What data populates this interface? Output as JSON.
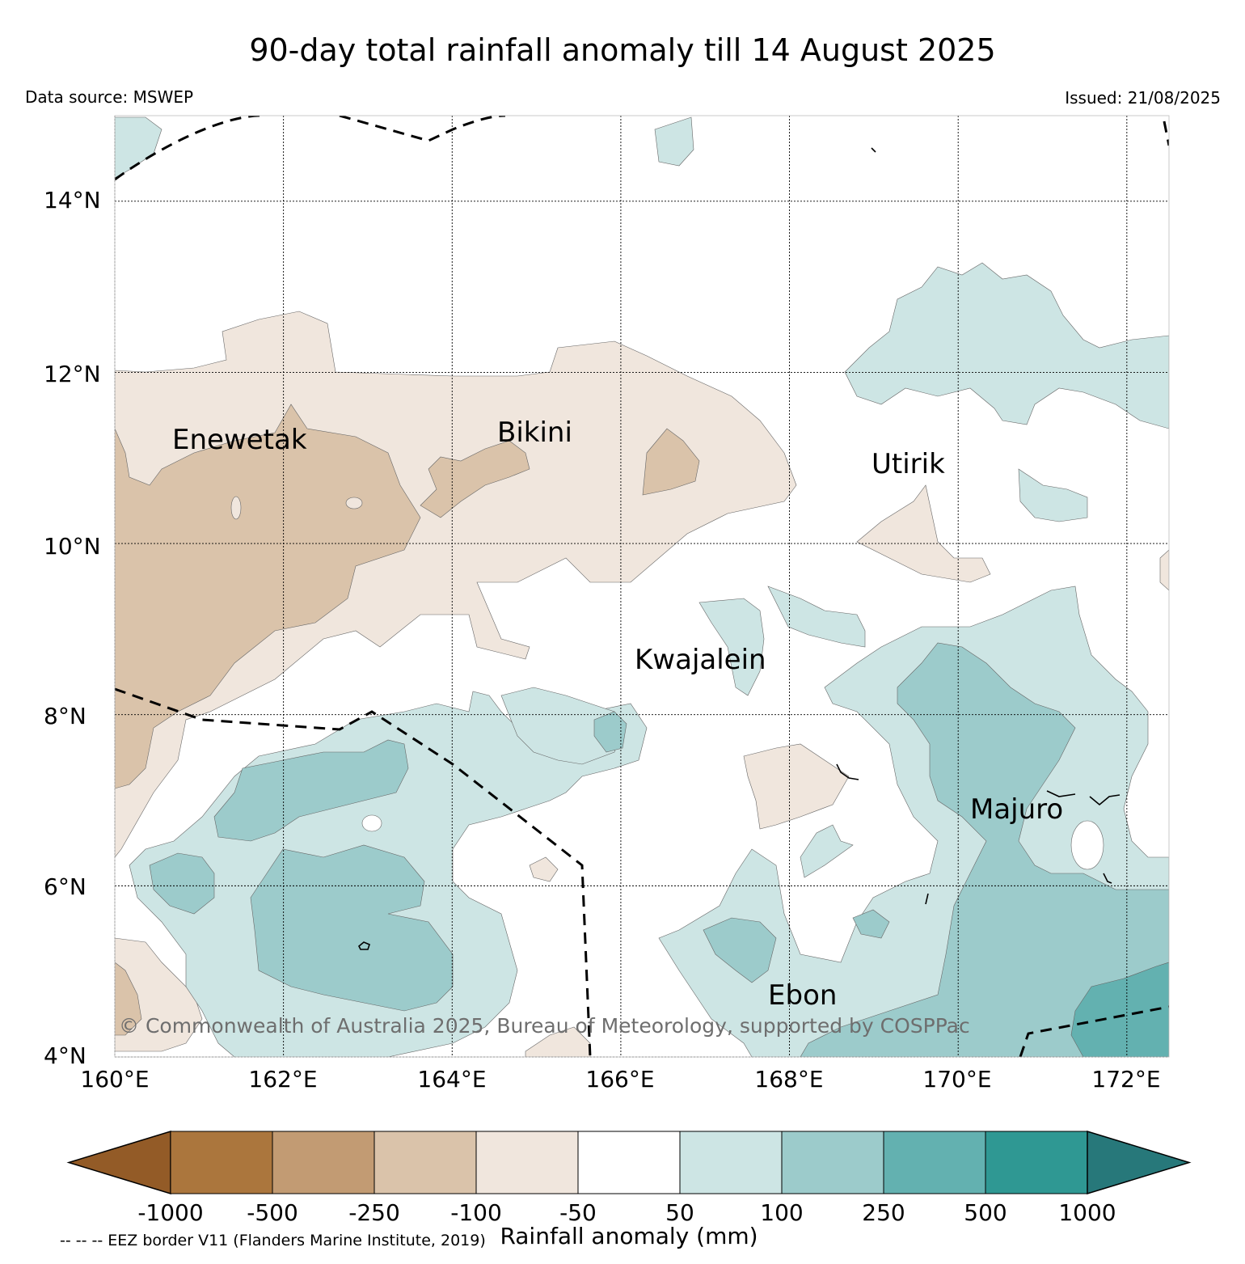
{
  "title": "90-day total rainfall anomaly till 14 August 2025",
  "data_source": "Data source: MSWEP",
  "issued": "Issued: 21/08/2025",
  "copyright": "© Commonwealth of Australia 2025, Bureau of Meteorology, supported by COSPPac",
  "eez_note": "-- -- -- EEZ border V11 (Flanders Marine Institute, 2019)",
  "map": {
    "lon_range": [
      160,
      172.5
    ],
    "lat_range": [
      4,
      15
    ],
    "lat_labels": [
      "14°N",
      "12°N",
      "10°N",
      "8°N",
      "6°N",
      "4°N"
    ],
    "lon_labels": [
      "160°E",
      "162°E",
      "164°E",
      "166°E",
      "168°E",
      "170°E",
      "172°E"
    ],
    "places": [
      {
        "name": "Enewetak",
        "lon": 160.7,
        "lat": 11.2
      },
      {
        "name": "Bikini",
        "lon": 164.5,
        "lat": 11.3
      },
      {
        "name": "Utirik",
        "lon": 169.1,
        "lat": 10.9
      },
      {
        "name": "Kwajalein",
        "lon": 166.2,
        "lat": 8.65
      },
      {
        "name": "Majuro",
        "lon": 170.2,
        "lat": 6.9
      },
      {
        "name": "Ebon",
        "lon": 167.7,
        "lat": 4.7
      }
    ]
  },
  "colorbar": {
    "title": "Rainfall anomaly (mm)",
    "ticks": [
      "-1000",
      "-500",
      "-250",
      "-100",
      "-50",
      "50",
      "100",
      "250",
      "500",
      "1000"
    ],
    "colors": [
      "#935b27",
      "#ab763d",
      "#c29b73",
      "#dac3aa",
      "#f0e6dd",
      "#ffffff",
      "#cde5e4",
      "#9ccbcb",
      "#63b1b0",
      "#2f9893",
      "#27787a"
    ]
  }
}
